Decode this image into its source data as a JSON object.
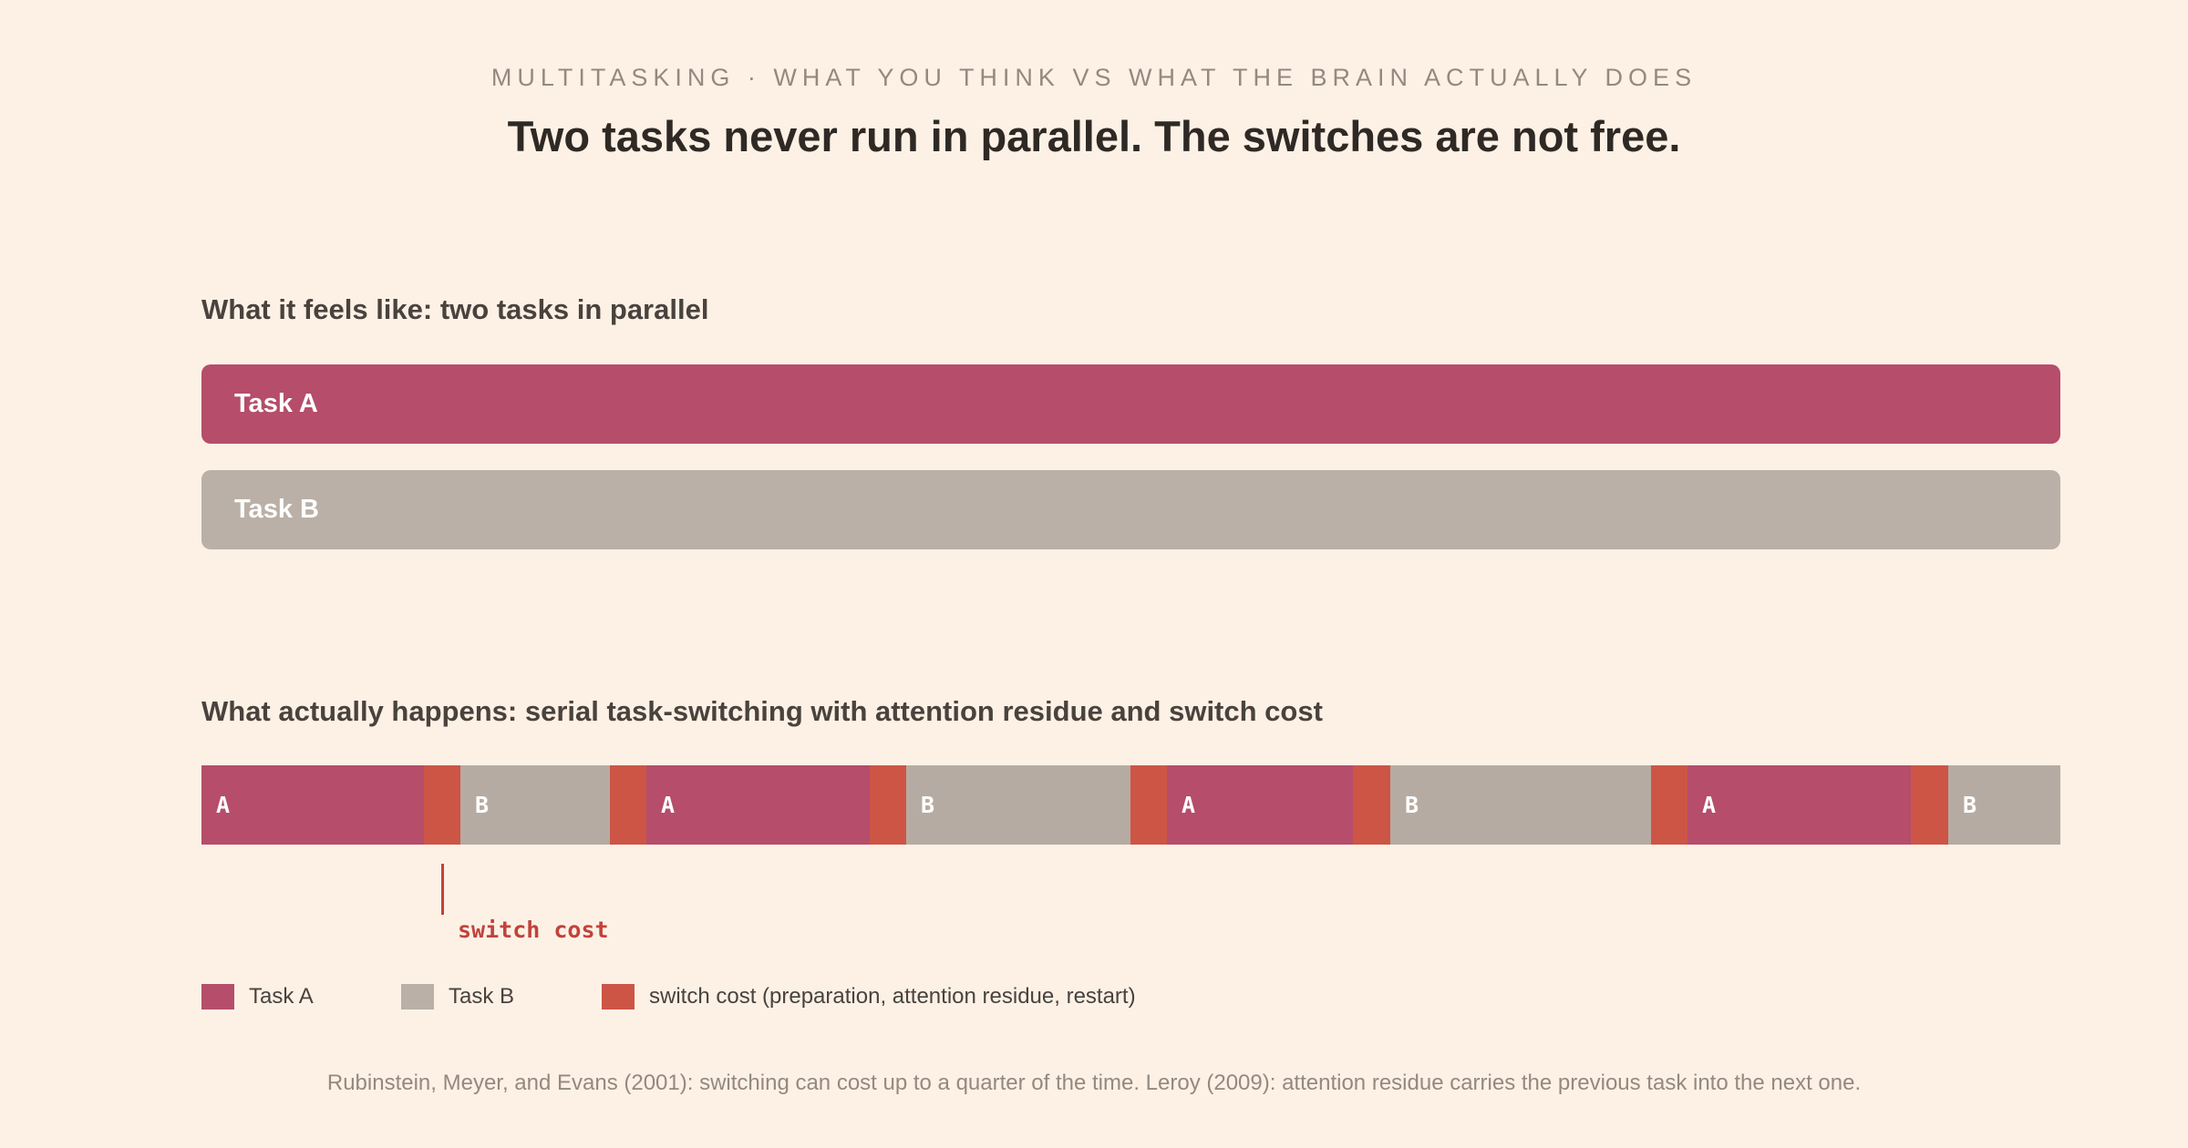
{
  "header": {
    "kicker": "MULTITASKING · WHAT YOU THINK VS WHAT THE BRAIN ACTUALLY DOES",
    "title": "Two tasks never run in parallel. The switches are not free."
  },
  "colors": {
    "task_a": "#b54d6b",
    "task_b": "#bab0a7",
    "task_b_serial": "#b6aba2",
    "switch_cost": "#cd5546",
    "callout": "#c0433a"
  },
  "parallel": {
    "title": "What it feels like: two tasks in parallel",
    "task_a_label": "Task A",
    "task_b_label": "Task B"
  },
  "serial": {
    "title": "What actually happens: serial task-switching with attention residue and switch cost",
    "callout_label": "switch cost",
    "segments": [
      {
        "type": "A",
        "label": "A",
        "duration": 244
      },
      {
        "type": "S",
        "label": "",
        "duration": 40
      },
      {
        "type": "B",
        "label": "B",
        "duration": 164
      },
      {
        "type": "S",
        "label": "",
        "duration": 40
      },
      {
        "type": "A",
        "label": "A",
        "duration": 245
      },
      {
        "type": "S",
        "label": "",
        "duration": 40
      },
      {
        "type": "B",
        "label": "B",
        "duration": 246
      },
      {
        "type": "S",
        "label": "",
        "duration": 40
      },
      {
        "type": "A",
        "label": "A",
        "duration": 204
      },
      {
        "type": "S",
        "label": "",
        "duration": 41
      },
      {
        "type": "B",
        "label": "B",
        "duration": 286
      },
      {
        "type": "S",
        "label": "",
        "duration": 40
      },
      {
        "type": "A",
        "label": "A",
        "duration": 245
      },
      {
        "type": "S",
        "label": "",
        "duration": 41
      },
      {
        "type": "B",
        "label": "B",
        "duration": 123
      }
    ]
  },
  "legend": [
    {
      "key": "task_a",
      "label": "Task A"
    },
    {
      "key": "task_b",
      "label": "Task B"
    },
    {
      "key": "switch_cost",
      "label": "switch cost (preparation, attention residue, restart)"
    }
  ],
  "footnote": "Rubinstein, Meyer, and Evans (2001): switching can cost up to a quarter of the time. Leroy (2009): attention residue carries the previous task into the next one."
}
